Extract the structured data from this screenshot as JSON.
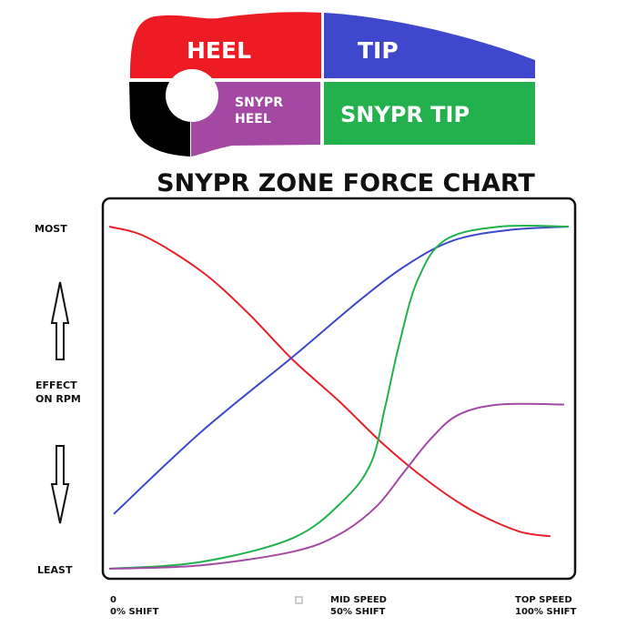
{
  "diagram": {
    "zones": [
      {
        "label": "HEEL",
        "color": "#ed1c24"
      },
      {
        "label": "TIP",
        "color": "#3f48cc"
      },
      {
        "label": "SNYPR HEEL",
        "line1": "SNYPR",
        "line2": "HEEL",
        "color": "#a349a4"
      },
      {
        "label": "SNYPR TIP",
        "color": "#22b14c"
      }
    ],
    "hosel_color": "#000000"
  },
  "chart_data": {
    "type": "line",
    "title": "SNYPR ZONE FORCE CHART",
    "ylabel": "EFFECT ON RPM",
    "y_tick_labels": {
      "top": "MOST",
      "bottom": "LEAST"
    },
    "x_tick_labels": [
      {
        "line1": "0",
        "line2": "0% SHIFT"
      },
      {
        "line1": "MID SPEED",
        "line2": "50% SHIFT"
      },
      {
        "line1": "TOP SPEED",
        "line2": "100% SHIFT"
      }
    ],
    "xlim": [
      0,
      100
    ],
    "ylim": [
      0,
      100
    ],
    "grid": false,
    "series": [
      {
        "color": "#e8202a",
        "points": [
          [
            0,
            100
          ],
          [
            8,
            97
          ],
          [
            20,
            87
          ],
          [
            30,
            75
          ],
          [
            40,
            61
          ],
          [
            50,
            49
          ],
          [
            60,
            36
          ],
          [
            70,
            25
          ],
          [
            79,
            17
          ],
          [
            89,
            11
          ],
          [
            96,
            9.5
          ]
        ]
      },
      {
        "color": "#3f48cc",
        "points": [
          [
            1,
            16
          ],
          [
            20,
            40
          ],
          [
            40,
            62
          ],
          [
            55,
            79
          ],
          [
            65,
            89
          ],
          [
            75,
            96
          ],
          [
            87,
            99
          ],
          [
            100,
            100
          ]
        ]
      },
      {
        "color": "#22b14c",
        "points": [
          [
            0,
            0
          ],
          [
            20,
            2
          ],
          [
            40,
            9
          ],
          [
            51,
            20
          ],
          [
            57,
            31
          ],
          [
            60,
            47
          ],
          [
            63,
            65
          ],
          [
            67,
            84
          ],
          [
            73,
            96
          ],
          [
            85,
            100
          ],
          [
            100,
            100
          ]
        ]
      },
      {
        "color": "#a349a4",
        "points": [
          [
            0,
            0
          ],
          [
            20,
            1
          ],
          [
            40,
            5
          ],
          [
            50,
            10
          ],
          [
            58,
            18
          ],
          [
            64,
            28
          ],
          [
            70,
            38
          ],
          [
            76,
            45
          ],
          [
            85,
            48
          ],
          [
            99,
            48
          ]
        ]
      }
    ]
  }
}
